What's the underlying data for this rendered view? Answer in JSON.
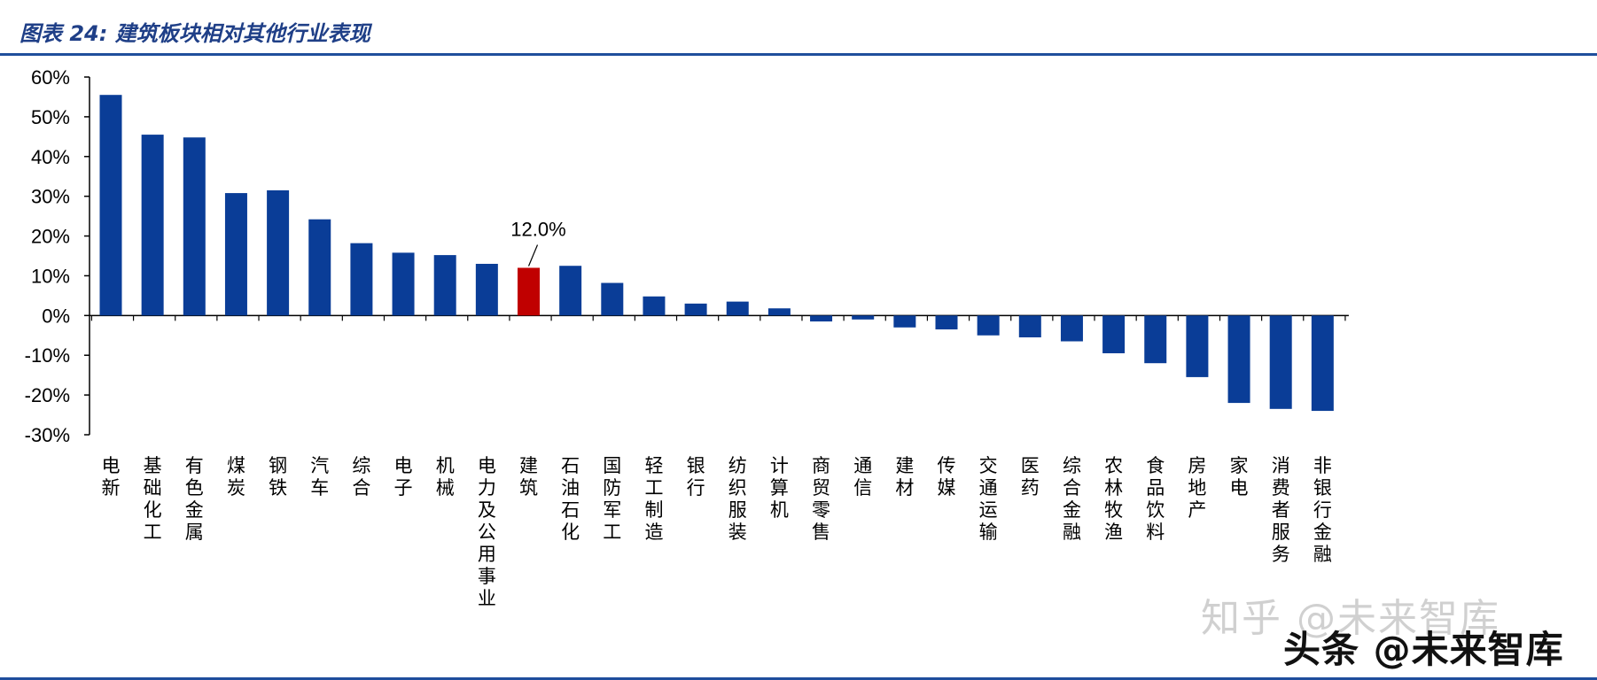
{
  "header": {
    "title": "图表 24:  建筑板块相对其他行业表现"
  },
  "chart_data": {
    "type": "bar",
    "title": "",
    "xlabel": "",
    "ylabel": "",
    "ylim": [
      -30,
      60
    ],
    "yticks": [
      60,
      50,
      40,
      30,
      20,
      10,
      0,
      -10,
      -20,
      -30
    ],
    "ytick_labels": [
      "60%",
      "50%",
      "40%",
      "30%",
      "20%",
      "10%",
      "0%",
      "-10%",
      "-20%",
      "-30%"
    ],
    "categories": [
      "电新",
      "基础化工",
      "有色金属",
      "煤炭",
      "钢铁",
      "汽车",
      "综合",
      "电子",
      "机械",
      "电力及公用事业",
      "建筑",
      "石油石化",
      "国防军工",
      "轻工制造",
      "银行",
      "纺织服装",
      "计算机",
      "商贸零售",
      "通信",
      "建材",
      "传媒",
      "交通运输",
      "医药",
      "综合金融",
      "农林牧渔",
      "食品饮料",
      "房地产",
      "家电",
      "消费者服务",
      "非银行金融"
    ],
    "values": [
      55.5,
      45.5,
      44.8,
      30.8,
      31.5,
      24.2,
      18.2,
      15.8,
      15.2,
      13.0,
      12.0,
      12.5,
      8.2,
      4.8,
      3.0,
      3.5,
      1.8,
      -1.5,
      -1.0,
      -3.0,
      -3.5,
      -5.0,
      -5.5,
      -6.5,
      -9.5,
      -12.0,
      -15.5,
      -22.0,
      -23.5,
      -24.0
    ],
    "highlight_category": "建筑",
    "highlight_label": "12.0%",
    "colors": {
      "bar": "#0a3d97",
      "highlight": "#c00000",
      "axis": "#000000"
    },
    "grid": false,
    "legend": "none"
  },
  "watermarks": {
    "zhihu": "知乎 @未来智库",
    "toutiao": "头条 @未来智库"
  }
}
